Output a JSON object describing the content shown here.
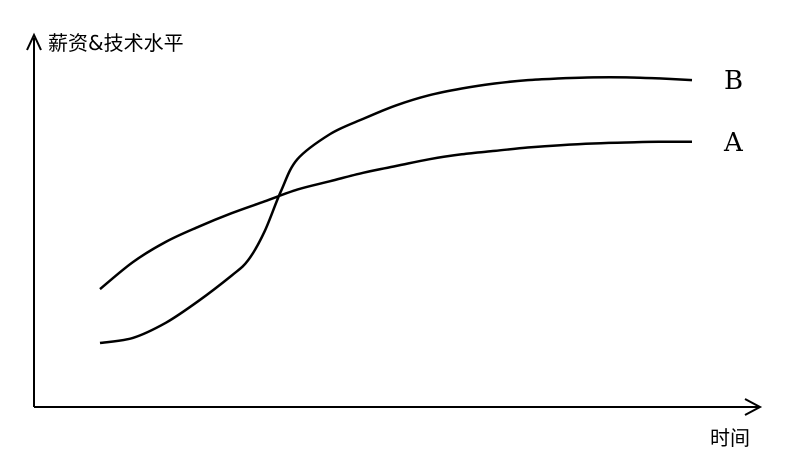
{
  "chart_data": {
    "type": "line",
    "ylabel": "薪资&技术水平",
    "xlabel": "时间",
    "xlim": [
      0,
      10
    ],
    "ylim": [
      0,
      10
    ],
    "grid": false,
    "ticks": false,
    "series": [
      {
        "name": "A",
        "x": [
          0,
          0.5,
          1,
          1.5,
          2,
          2.5,
          3,
          3.5,
          4,
          4.5,
          5,
          5.5,
          6,
          6.5,
          7,
          7.5,
          8,
          8.5,
          9
        ],
        "y": [
          3.5,
          4.3,
          4.9,
          5.35,
          5.75,
          6.1,
          6.45,
          6.7,
          6.95,
          7.15,
          7.35,
          7.5,
          7.6,
          7.7,
          7.77,
          7.82,
          7.85,
          7.87,
          7.87
        ]
      },
      {
        "name": "B",
        "x": [
          0,
          0.5,
          1,
          1.5,
          2,
          2.25,
          2.5,
          2.75,
          3,
          3.5,
          4,
          4.5,
          5,
          5.5,
          6,
          6.5,
          7,
          7.5,
          8,
          8.5,
          9
        ],
        "y": [
          1.9,
          2.05,
          2.5,
          3.15,
          3.9,
          4.35,
          5.2,
          6.4,
          7.35,
          8.1,
          8.55,
          8.95,
          9.25,
          9.45,
          9.6,
          9.7,
          9.75,
          9.78,
          9.78,
          9.75,
          9.7
        ]
      }
    ]
  },
  "colors": {
    "line": "#000000",
    "background": "#ffffff"
  }
}
